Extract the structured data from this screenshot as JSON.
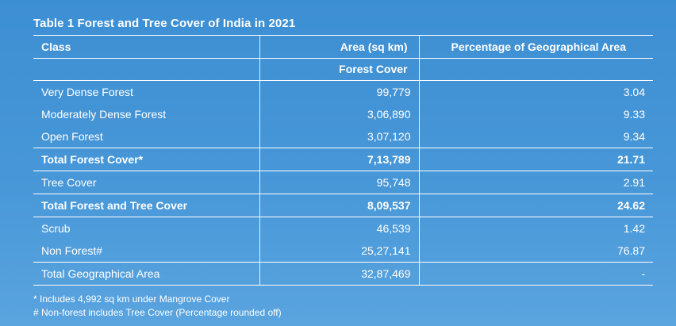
{
  "title": "Table 1 Forest and Tree Cover of India in 2021",
  "headers": {
    "class": "Class",
    "area": "Area (sq km)",
    "percentage": "Percentage of Geographical Area",
    "sub_area": "Forest Cover"
  },
  "rows": [
    {
      "class": "Very Dense Forest",
      "area": "99,779",
      "pct": "3.04"
    },
    {
      "class": "Moderately Dense Forest",
      "area": "3,06,890",
      "pct": "9.33"
    },
    {
      "class": "Open Forest",
      "area": "3,07,120",
      "pct": "9.34"
    },
    {
      "class": "Total Forest Cover*",
      "area": "7,13,789",
      "pct": "21.71"
    },
    {
      "class": "Tree Cover",
      "area": "95,748",
      "pct": "2.91"
    },
    {
      "class": "Total Forest and Tree Cover",
      "area": "8,09,537",
      "pct": "24.62"
    },
    {
      "class": "Scrub",
      "area": "46,539",
      "pct": "1.42"
    },
    {
      "class": "Non Forest#",
      "area": "25,27,141",
      "pct": "76.87"
    },
    {
      "class": "Total Geographical Area",
      "area": "32,87,469",
      "pct": "-"
    }
  ],
  "notes": [
    "* Includes 4,992 sq km under Mangrove Cover",
    "# Non-forest includes Tree Cover (Percentage rounded off)"
  ]
}
